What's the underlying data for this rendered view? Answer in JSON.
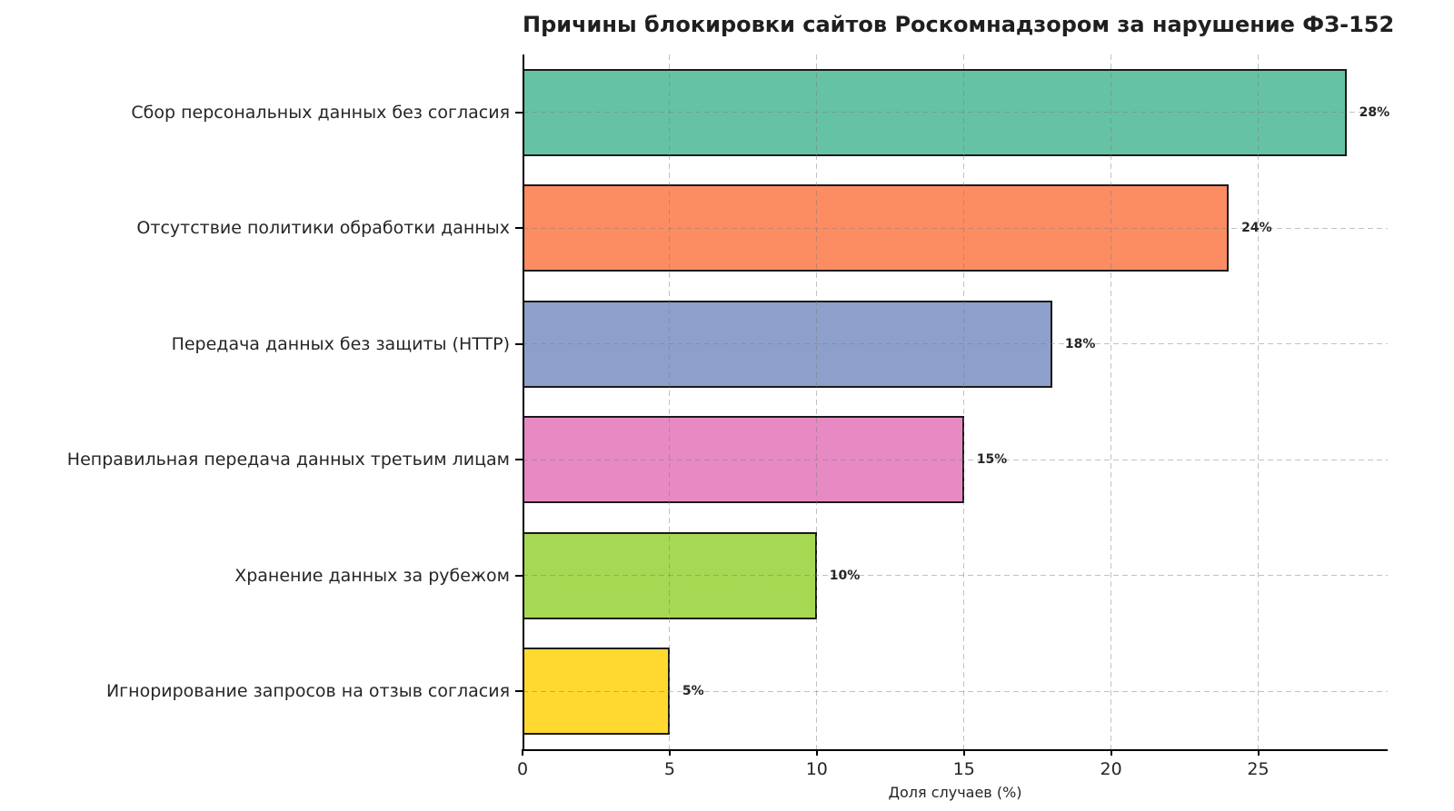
{
  "figure": {
    "background": "#ffffff"
  },
  "chart_data": {
    "type": "bar",
    "orientation": "horizontal",
    "title": "Причины блокировки сайтов Роскомнадзором за нарушение ФЗ-152",
    "categories": [
      "Сбор персональных данных без согласия",
      "Отсутствие политики обработки данных",
      "Передача данных без защиты (HTTP)",
      "Неправильная передача данных третьим лицам",
      "Хранение данных за рубежом",
      "Игнорирование запросов на отзыв согласия"
    ],
    "values": [
      28,
      24,
      18,
      15,
      10,
      5
    ],
    "value_labels": [
      "28%",
      "24%",
      "18%",
      "15%",
      "10%",
      "5%"
    ],
    "bar_colors": [
      "#66c2a5",
      "#fc8d62",
      "#8da0cb",
      "#e78ac3",
      "#a6d854",
      "#ffd92f"
    ],
    "bar_edge_color": "#1a1a1a",
    "xlabel": "Доля случаев (%)",
    "ylabel": "",
    "xticks": [
      0,
      5,
      10,
      15,
      20,
      25
    ],
    "xtick_labels": [
      "0",
      "5",
      "10",
      "15",
      "20",
      "25"
    ],
    "xlim": [
      0,
      29.4
    ],
    "grid": {
      "style": "dashed",
      "color": "#c9c9c9",
      "axes": "both"
    },
    "legend_position": "none"
  }
}
